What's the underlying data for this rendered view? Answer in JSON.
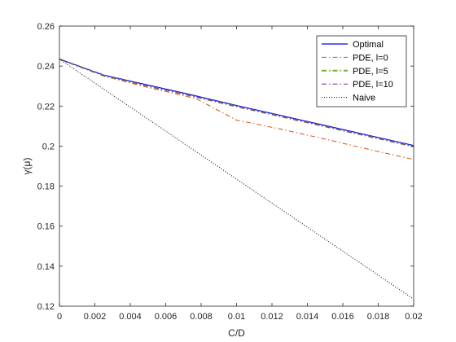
{
  "chart_data": {
    "type": "line",
    "xlabel": "C/D",
    "ylabel": "γ(μ)",
    "xlim": [
      0,
      0.02
    ],
    "ylim": [
      0.12,
      0.26
    ],
    "xticks": [
      "0",
      "0.002",
      "0.004",
      "0.006",
      "0.008",
      "0.01",
      "0.012",
      "0.014",
      "0.016",
      "0.018",
      "0.02"
    ],
    "xtick_values": [
      0,
      0.002,
      0.004,
      0.006,
      0.008,
      0.01,
      0.012,
      0.014,
      0.016,
      0.018,
      0.02
    ],
    "yticks": [
      "0.12",
      "0.14",
      "0.16",
      "0.18",
      "0.2",
      "0.22",
      "0.24",
      "0.26"
    ],
    "ytick_values": [
      0.12,
      0.14,
      0.16,
      0.18,
      0.2,
      0.22,
      0.24,
      0.26
    ],
    "grid": false,
    "legend_position": "top-right",
    "series": [
      {
        "name": "Optimal",
        "color": "#0000ff",
        "style": "solid",
        "x": [
          0,
          0.0025,
          0.005,
          0.0075,
          0.01,
          0.0125,
          0.015,
          0.0175,
          0.02
        ],
        "y": [
          0.2435,
          0.2355,
          0.2305,
          0.2255,
          0.2203,
          0.2153,
          0.2103,
          0.2053,
          0.2003
        ]
      },
      {
        "name": "PDE, l=0",
        "color": "#d95319",
        "style": "dashdot",
        "x": [
          0,
          0.0025,
          0.005,
          0.0077,
          0.01,
          0.0125,
          0.015,
          0.0175,
          0.02
        ],
        "y": [
          0.2435,
          0.235,
          0.2293,
          0.2238,
          0.213,
          0.2085,
          0.2035,
          0.1983,
          0.1933
        ]
      },
      {
        "name": "PDE, l=5",
        "color": "#77ac30",
        "style": "dashdot-thick",
        "x": [
          0,
          0.0025,
          0.005,
          0.0075,
          0.01,
          0.0125,
          0.015,
          0.0175,
          0.02
        ],
        "y": [
          0.2435,
          0.2352,
          0.23,
          0.225,
          0.2198,
          0.2148,
          0.2098,
          0.2048,
          0.1998
        ]
      },
      {
        "name": "PDE, l=10",
        "color": "#7e2f8e",
        "style": "dashdot",
        "x": [
          0,
          0.0025,
          0.005,
          0.0075,
          0.01,
          0.0125,
          0.015,
          0.0175,
          0.02
        ],
        "y": [
          0.2435,
          0.2352,
          0.23,
          0.225,
          0.2198,
          0.2148,
          0.2098,
          0.2048,
          0.1998
        ]
      },
      {
        "name": "Naive",
        "color": "#000000",
        "style": "dotted",
        "x": [
          0,
          0.02
        ],
        "y": [
          0.2435,
          0.1235
        ]
      }
    ]
  }
}
